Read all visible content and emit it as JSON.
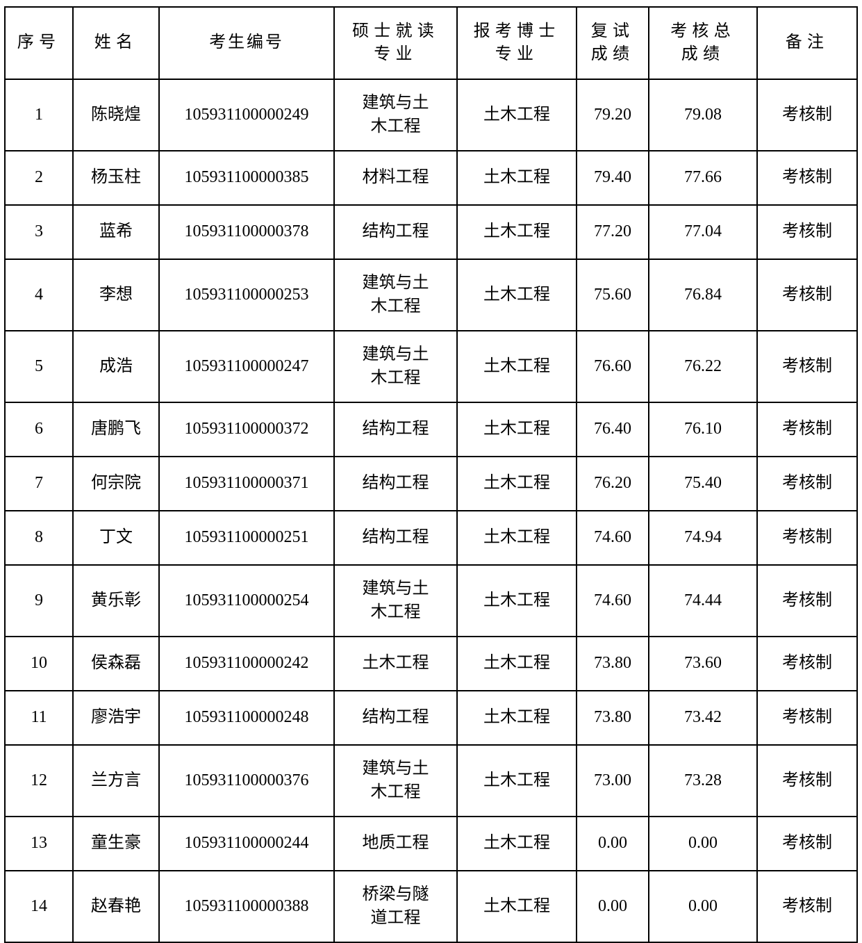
{
  "document": {
    "type": "score-table",
    "language": "zh-CN"
  },
  "colors": {
    "background": "#ffffff",
    "border": "#000000",
    "text": "#000000"
  },
  "table": {
    "headers": [
      "序号",
      "姓名",
      "考生编号",
      "硕士就读\n专业",
      "报考博士\n专业",
      "复试\n成绩",
      "考核总\n成绩",
      "备注"
    ],
    "column_keys": [
      "serial-number",
      "name",
      "candidate-number",
      "master-major",
      "phd-major",
      "retest-score",
      "total-assessment-score",
      "remark"
    ],
    "rows": [
      [
        "1",
        "陈晓煌",
        "105931100000249",
        "建筑与土木工程",
        "土木工程",
        "79.20",
        "79.08",
        "考核制"
      ],
      [
        "2",
        "杨玉柱",
        "105931100000385",
        "材料工程",
        "土木工程",
        "79.40",
        "77.66",
        "考核制"
      ],
      [
        "3",
        "蓝希",
        "105931100000378",
        "结构工程",
        "土木工程",
        "77.20",
        "77.04",
        "考核制"
      ],
      [
        "4",
        "李想",
        "105931100000253",
        "建筑与土木工程",
        "土木工程",
        "75.60",
        "76.84",
        "考核制"
      ],
      [
        "5",
        "成浩",
        "105931100000247",
        "建筑与土木工程",
        "土木工程",
        "76.60",
        "76.22",
        "考核制"
      ],
      [
        "6",
        "唐鹏飞",
        "105931100000372",
        "结构工程",
        "土木工程",
        "76.40",
        "76.10",
        "考核制"
      ],
      [
        "7",
        "何宗院",
        "105931100000371",
        "结构工程",
        "土木工程",
        "76.20",
        "75.40",
        "考核制"
      ],
      [
        "8",
        "丁文",
        "105931100000251",
        "结构工程",
        "土木工程",
        "74.60",
        "74.94",
        "考核制"
      ],
      [
        "9",
        "黄乐彰",
        "105931100000254",
        "建筑与土木工程",
        "土木工程",
        "74.60",
        "74.44",
        "考核制"
      ],
      [
        "10",
        "侯森磊",
        "105931100000242",
        "土木工程",
        "土木工程",
        "73.80",
        "73.60",
        "考核制"
      ],
      [
        "11",
        "廖浩宇",
        "105931100000248",
        "结构工程",
        "土木工程",
        "73.80",
        "73.42",
        "考核制"
      ],
      [
        "12",
        "兰方言",
        "105931100000376",
        "建筑与土木工程",
        "土木工程",
        "73.00",
        "73.28",
        "考核制"
      ],
      [
        "13",
        "童生豪",
        "105931100000244",
        "地质工程",
        "土木工程",
        "0.00",
        "0.00",
        "考核制"
      ],
      [
        "14",
        "赵春艳",
        "105931100000388",
        "桥梁与隧道工程",
        "土木工程",
        "0.00",
        "0.00",
        "考核制"
      ]
    ]
  }
}
